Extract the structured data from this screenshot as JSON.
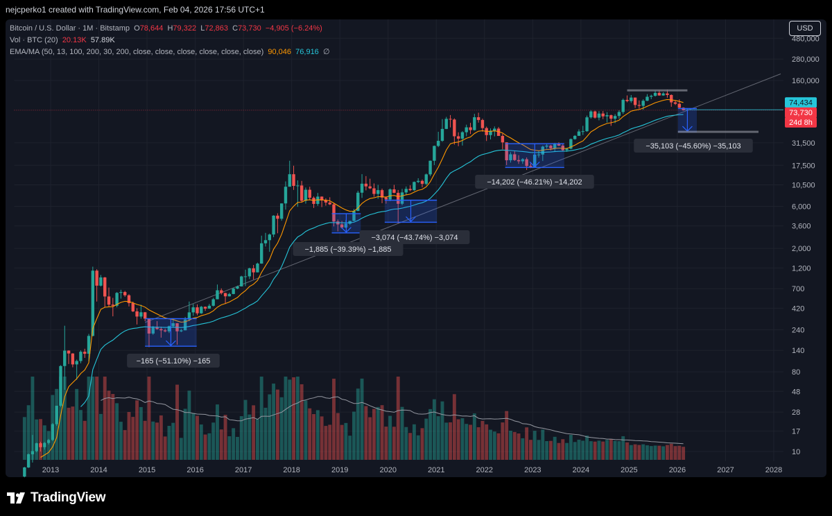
{
  "header": {
    "credit": "nejcperko1 created with TradingView.com, Feb 04, 2026 17:56 UTC+1"
  },
  "legend": {
    "symbol": "Bitcoin / U.S. Dollar · 1M · Bitstamp",
    "open_label": "O",
    "open": "78,644",
    "high_label": "H",
    "high": "79,322",
    "low_label": "L",
    "low": "72,863",
    "close_label": "C",
    "close": "73,730",
    "change": "−4,905 (−6.24%)",
    "vol_label": "Vol · BTC (20)",
    "vol_ma": "20.13K",
    "vol_value": "57.89K",
    "ema_label": "EMA/MA (50, 13, 100, 200, 30, 200, close, close, close, close, close, close)",
    "ema_value1": "90,046",
    "ema_value2": "76,916",
    "ema_value3": "∅"
  },
  "currency_button": "USD",
  "brand": {
    "name": "TradingView"
  },
  "colors": {
    "up": "#26a69a",
    "down": "#ef5350",
    "ema_fast": "#ff9800",
    "ma_slow": "#26c6da",
    "measure": "#2962ff",
    "background": "#131722"
  },
  "chart_data": {
    "type": "candlestick",
    "scale": "log",
    "x_ticks": [
      "2013",
      "2014",
      "2015",
      "2016",
      "2017",
      "2018",
      "2019",
      "2020",
      "2021",
      "2022",
      "2023",
      "2024",
      "2025",
      "2026",
      "2027",
      "2028"
    ],
    "y_ticks": [
      "480,000",
      "280,000",
      "160,000",
      "31,500",
      "17,500",
      "10,500",
      "6,000",
      "3,600",
      "2,000",
      "1,200",
      "700",
      "420",
      "240",
      "140",
      "80",
      "48",
      "28",
      "17",
      "10"
    ],
    "price_labels": [
      {
        "value": "74,434",
        "color": "#26c6da"
      },
      {
        "value": "73,730",
        "color": "#f23645"
      },
      {
        "value": "24d 8h",
        "color": "#f23645"
      }
    ],
    "measurements": [
      {
        "label": "−165 (−51.10%) −165"
      },
      {
        "label": "−1,885 (−39.39%) −1,885"
      },
      {
        "label": "−3,074 (−43.74%) −3,074"
      },
      {
        "label": "−14,202 (−46.21%) −14,202"
      },
      {
        "label": "−35,103 (−45.60%) −35,103"
      }
    ],
    "candles": [
      [
        "2012-06",
        5.2,
        6.7,
        5.1,
        6.6
      ],
      [
        "2012-07",
        6.6,
        9.5,
        6.5,
        9.3
      ],
      [
        "2012-08",
        9.3,
        15.4,
        7.5,
        10.1
      ],
      [
        "2012-09",
        10.1,
        12.6,
        9.8,
        12.4
      ],
      [
        "2012-10",
        12.4,
        12.9,
        10.0,
        11.2
      ],
      [
        "2012-11",
        11.2,
        12.8,
        10.5,
        12.5
      ],
      [
        "2012-12",
        12.5,
        13.9,
        12.0,
        13.5
      ],
      [
        "2013-01",
        13.5,
        21,
        13.1,
        20.4
      ],
      [
        "2013-02",
        20.4,
        33,
        19.5,
        33
      ],
      [
        "2013-03",
        33,
        95,
        32,
        93
      ],
      [
        "2013-04",
        93,
        266,
        50,
        139
      ],
      [
        "2013-05",
        139,
        140,
        98,
        129
      ],
      [
        "2013-06",
        129,
        130,
        90,
        97
      ],
      [
        "2013-07",
        97,
        110,
        65,
        106
      ],
      [
        "2013-08",
        106,
        140,
        100,
        135
      ],
      [
        "2013-09",
        135,
        146,
        115,
        128
      ],
      [
        "2013-10",
        128,
        215,
        105,
        204
      ],
      [
        "2013-11",
        204,
        1242,
        202,
        1120
      ],
      [
        "2013-12",
        1120,
        1163,
        500,
        757
      ],
      [
        "2014-01",
        757,
        1000,
        740,
        938
      ],
      [
        "2014-02",
        938,
        950,
        430,
        571
      ],
      [
        "2014-03",
        571,
        720,
        432,
        461
      ],
      [
        "2014-04",
        461,
        550,
        340,
        448
      ],
      [
        "2014-05",
        448,
        640,
        430,
        627
      ],
      [
        "2014-06",
        627,
        680,
        540,
        641
      ],
      [
        "2014-07",
        641,
        660,
        565,
        589
      ],
      [
        "2014-08",
        589,
        605,
        440,
        480
      ],
      [
        "2014-09",
        480,
        500,
        380,
        387
      ],
      [
        "2014-10",
        387,
        420,
        275,
        338
      ],
      [
        "2014-11",
        338,
        460,
        320,
        378
      ],
      [
        "2014-12",
        378,
        381,
        300,
        320
      ],
      [
        "2015-01",
        320,
        320,
        152,
        217
      ],
      [
        "2015-02",
        217,
        265,
        210,
        254
      ],
      [
        "2015-03",
        254,
        300,
        240,
        244
      ],
      [
        "2015-04",
        244,
        260,
        195,
        236
      ],
      [
        "2015-05",
        236,
        247,
        224,
        230
      ],
      [
        "2015-06",
        230,
        267,
        220,
        263
      ],
      [
        "2015-07",
        263,
        318,
        255,
        284
      ],
      [
        "2015-08",
        284,
        285,
        162,
        230
      ],
      [
        "2015-09",
        230,
        245,
        225,
        236
      ],
      [
        "2015-10",
        236,
        334,
        236,
        313
      ],
      [
        "2015-11",
        313,
        500,
        300,
        377
      ],
      [
        "2015-12",
        377,
        470,
        345,
        430
      ],
      [
        "2016-01",
        430,
        465,
        350,
        368
      ],
      [
        "2016-02",
        368,
        446,
        363,
        436
      ],
      [
        "2016-03",
        436,
        440,
        392,
        416
      ],
      [
        "2016-04",
        416,
        470,
        414,
        448
      ],
      [
        "2016-05",
        448,
        550,
        440,
        531
      ],
      [
        "2016-06",
        531,
        780,
        530,
        671
      ],
      [
        "2016-07",
        671,
        705,
        600,
        624
      ],
      [
        "2016-08",
        624,
        630,
        470,
        573
      ],
      [
        "2016-09",
        573,
        630,
        570,
        609
      ],
      [
        "2016-10",
        609,
        719,
        605,
        701
      ],
      [
        "2016-11",
        701,
        758,
        690,
        742
      ],
      [
        "2016-12",
        742,
        980,
        740,
        963
      ],
      [
        "2017-01",
        963,
        1150,
        750,
        965
      ],
      [
        "2017-02",
        965,
        1210,
        900,
        1190
      ],
      [
        "2017-03",
        1190,
        1300,
        890,
        1071
      ],
      [
        "2017-04",
        1071,
        1380,
        1070,
        1347
      ],
      [
        "2017-05",
        1347,
        2790,
        1340,
        2286
      ],
      [
        "2017-06",
        2286,
        3000,
        2100,
        2480
      ],
      [
        "2017-07",
        2480,
        2950,
        1830,
        2875
      ],
      [
        "2017-08",
        2875,
        4760,
        2680,
        4703
      ],
      [
        "2017-09",
        4703,
        5000,
        2970,
        4338
      ],
      [
        "2017-10",
        4338,
        6470,
        4120,
        6468
      ],
      [
        "2017-11",
        6468,
        11500,
        5500,
        10000
      ],
      [
        "2017-12",
        10000,
        19700,
        10700,
        13860
      ],
      [
        "2018-01",
        13860,
        17300,
        9200,
        10220
      ],
      [
        "2018-02",
        10220,
        11800,
        5920,
        10330
      ],
      [
        "2018-03",
        10330,
        11650,
        6600,
        6930
      ],
      [
        "2018-04",
        6930,
        9800,
        6430,
        9240
      ],
      [
        "2018-05",
        9240,
        9990,
        7030,
        7490
      ],
      [
        "2018-06",
        7490,
        7760,
        5750,
        6390
      ],
      [
        "2018-07",
        6390,
        8500,
        6080,
        7730
      ],
      [
        "2018-08",
        7730,
        7770,
        5880,
        7000
      ],
      [
        "2018-09",
        7000,
        7400,
        6100,
        6620
      ],
      [
        "2018-10",
        6620,
        7600,
        6200,
        6310
      ],
      [
        "2018-11",
        6310,
        6590,
        3550,
        4040
      ],
      [
        "2018-12",
        4040,
        4250,
        3120,
        3740
      ],
      [
        "2019-01",
        3740,
        4100,
        3350,
        3450
      ],
      [
        "2019-02",
        3450,
        4210,
        3380,
        3810
      ],
      [
        "2019-03",
        3810,
        4110,
        3700,
        4100
      ],
      [
        "2019-04",
        4100,
        5600,
        4060,
        5320
      ],
      [
        "2019-05",
        5320,
        9000,
        5300,
        8560
      ],
      [
        "2019-06",
        8560,
        13880,
        7470,
        10820
      ],
      [
        "2019-07",
        10820,
        13200,
        9100,
        10090
      ],
      [
        "2019-08",
        10090,
        12330,
        9400,
        9590
      ],
      [
        "2019-09",
        9590,
        10900,
        7710,
        8290
      ],
      [
        "2019-10",
        8290,
        10500,
        7300,
        9150
      ],
      [
        "2019-11",
        9150,
        9520,
        6510,
        7550
      ],
      [
        "2019-12",
        7550,
        7750,
        6430,
        7190
      ],
      [
        "2020-01",
        7190,
        9580,
        6860,
        9340
      ],
      [
        "2020-02",
        9340,
        10500,
        8440,
        8520
      ],
      [
        "2020-03",
        8520,
        9190,
        3850,
        6410
      ],
      [
        "2020-04",
        6410,
        9460,
        6160,
        8620
      ],
      [
        "2020-05",
        8620,
        10070,
        8120,
        9450
      ],
      [
        "2020-06",
        9450,
        10380,
        8910,
        9140
      ],
      [
        "2020-07",
        9140,
        11460,
        8980,
        11330
      ],
      [
        "2020-08",
        11330,
        12480,
        10990,
        11650
      ],
      [
        "2020-09",
        11650,
        12070,
        9850,
        10780
      ],
      [
        "2020-10",
        10780,
        14100,
        10400,
        13800
      ],
      [
        "2020-11",
        13800,
        19800,
        13200,
        19700
      ],
      [
        "2020-12",
        19700,
        29300,
        17600,
        28990
      ],
      [
        "2021-01",
        28990,
        41950,
        28100,
        33110
      ],
      [
        "2021-02",
        33110,
        58350,
        32300,
        45170
      ],
      [
        "2021-03",
        45170,
        61780,
        44950,
        58740
      ],
      [
        "2021-04",
        58740,
        64850,
        47000,
        57720
      ],
      [
        "2021-05",
        57720,
        59500,
        30000,
        37300
      ],
      [
        "2021-06",
        37300,
        41330,
        28800,
        35040
      ],
      [
        "2021-07",
        35040,
        42600,
        29280,
        41460
      ],
      [
        "2021-08",
        41460,
        50500,
        37350,
        47100
      ],
      [
        "2021-09",
        47100,
        52950,
        39600,
        43820
      ],
      [
        "2021-10",
        43820,
        67000,
        43290,
        61300
      ],
      [
        "2021-11",
        61300,
        69000,
        53250,
        57000
      ],
      [
        "2021-12",
        57000,
        59050,
        42000,
        46200
      ],
      [
        "2022-01",
        46200,
        47990,
        32950,
        38480
      ],
      [
        "2022-02",
        38480,
        45800,
        34320,
        43160
      ],
      [
        "2022-03",
        43160,
        48200,
        37200,
        45530
      ],
      [
        "2022-04",
        45530,
        47440,
        37680,
        37640
      ],
      [
        "2022-05",
        37640,
        40000,
        26600,
        31790
      ],
      [
        "2022-06",
        31790,
        31900,
        17600,
        19940
      ],
      [
        "2022-07",
        19940,
        24670,
        18780,
        23300
      ],
      [
        "2022-08",
        23300,
        25200,
        19600,
        20050
      ],
      [
        "2022-09",
        20050,
        22790,
        18150,
        19420
      ],
      [
        "2022-10",
        19420,
        21090,
        18180,
        20490
      ],
      [
        "2022-11",
        20490,
        21470,
        15480,
        17160
      ],
      [
        "2022-12",
        17160,
        18400,
        16270,
        16530
      ],
      [
        "2023-01",
        16530,
        23950,
        16500,
        23130
      ],
      [
        "2023-02",
        23130,
        25270,
        21380,
        23150
      ],
      [
        "2023-03",
        23150,
        29200,
        19570,
        28470
      ],
      [
        "2023-04",
        28470,
        31010,
        26940,
        29250
      ],
      [
        "2023-05",
        29250,
        29840,
        25800,
        27220
      ],
      [
        "2023-06",
        27220,
        31430,
        24790,
        30470
      ],
      [
        "2023-07",
        30470,
        31840,
        28860,
        29230
      ],
      [
        "2023-08",
        29230,
        30230,
        25160,
        25940
      ],
      [
        "2023-09",
        25940,
        27480,
        24900,
        26970
      ],
      [
        "2023-10",
        26970,
        35190,
        26560,
        34650
      ],
      [
        "2023-11",
        34650,
        38450,
        34100,
        37720
      ],
      [
        "2023-12",
        37720,
        44700,
        37620,
        42280
      ],
      [
        "2024-01",
        42280,
        48970,
        38550,
        42580
      ],
      [
        "2024-02",
        42580,
        64000,
        41880,
        61130
      ],
      [
        "2024-03",
        61130,
        73800,
        59100,
        71330
      ],
      [
        "2024-04",
        71330,
        72750,
        59120,
        60640
      ],
      [
        "2024-05",
        60640,
        71960,
        56550,
        67500
      ],
      [
        "2024-06",
        67500,
        72000,
        58400,
        62680
      ],
      [
        "2024-07",
        62680,
        70000,
        53500,
        64630
      ],
      [
        "2024-08",
        64630,
        65600,
        49000,
        58970
      ],
      [
        "2024-09",
        58970,
        66500,
        52550,
        63330
      ],
      [
        "2024-10",
        63330,
        73600,
        58900,
        70270
      ],
      [
        "2024-11",
        70270,
        99800,
        66800,
        96400
      ],
      [
        "2024-12",
        96400,
        108300,
        90500,
        93400
      ],
      [
        "2025-01",
        93400,
        109350,
        89160,
        102400
      ],
      [
        "2025-02",
        102400,
        102500,
        78150,
        84350
      ],
      [
        "2025-03",
        84350,
        95000,
        76600,
        82550
      ],
      [
        "2025-04",
        82550,
        97900,
        74400,
        94200
      ],
      [
        "2025-05",
        94200,
        111950,
        93400,
        104600
      ],
      [
        "2025-06",
        104600,
        110500,
        98200,
        107200
      ],
      [
        "2025-07",
        107200,
        123200,
        105100,
        115700
      ],
      [
        "2025-08",
        115700,
        124500,
        107300,
        108200
      ],
      [
        "2025-09",
        108200,
        117900,
        107300,
        114000
      ],
      [
        "2025-10",
        114000,
        126200,
        102000,
        109500
      ],
      [
        "2025-11",
        109500,
        111200,
        80500,
        90400
      ],
      [
        "2025-12",
        90400,
        94600,
        84400,
        87000
      ],
      [
        "2026-01",
        87000,
        97900,
        77300,
        78644
      ],
      [
        "2026-02",
        78644,
        79322,
        72863,
        73730
      ]
    ]
  }
}
